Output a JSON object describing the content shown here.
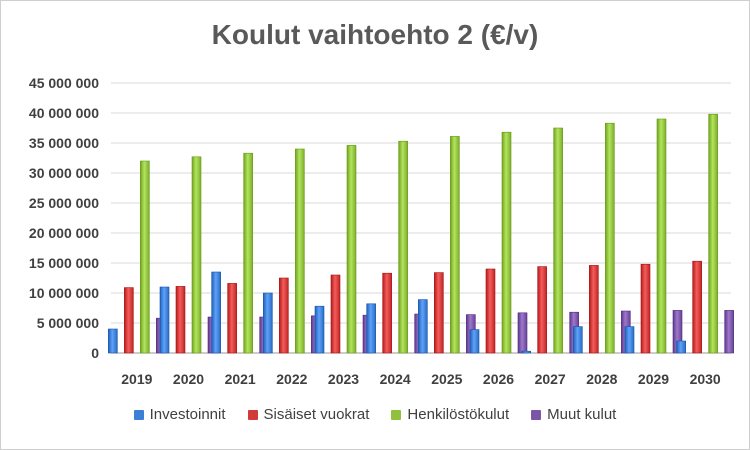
{
  "chart_data": {
    "type": "bar",
    "title": "Koulut vaihtoehto 2 (€/v)",
    "xlabel": "",
    "ylabel": "",
    "ylim": [
      0,
      45000000
    ],
    "yticks": [
      0,
      5000000,
      10000000,
      15000000,
      20000000,
      25000000,
      30000000,
      35000000,
      40000000,
      45000000
    ],
    "ytick_labels": [
      "0",
      "5 000 000",
      "10 000 000",
      "15 000 000",
      "20 000 000",
      "25 000 000",
      "30 000 000",
      "35 000 000",
      "40 000 000",
      "45 000 000"
    ],
    "grid": true,
    "legend_position": "bottom",
    "categories": [
      "2019",
      "2020",
      "2021",
      "2022",
      "2023",
      "2024",
      "2025",
      "2026",
      "2027",
      "2028",
      "2029",
      "2030"
    ],
    "series": [
      {
        "name": "Investoinnit",
        "color": "#3d7fd6",
        "values": [
          4000000,
          11000000,
          13500000,
          10000000,
          7800000,
          8200000,
          8900000,
          3900000,
          300000,
          4400000,
          4400000,
          2000000
        ]
      },
      {
        "name": "Sisäiset vuokrat",
        "color": "#d23a3a",
        "values": [
          10900000,
          11100000,
          11600000,
          12500000,
          13000000,
          13300000,
          13400000,
          14000000,
          14400000,
          14600000,
          14800000,
          15300000
        ]
      },
      {
        "name": "Henkilöstökulut",
        "color": "#8fc13d",
        "values": [
          32000000,
          32700000,
          33300000,
          34000000,
          34600000,
          35300000,
          36100000,
          36800000,
          37500000,
          38300000,
          39000000,
          39800000
        ]
      },
      {
        "name": "Muut kulut",
        "color": "#7a55a8",
        "values": [
          5800000,
          6000000,
          6000000,
          6200000,
          6300000,
          6500000,
          6400000,
          6700000,
          6800000,
          7000000,
          7100000,
          7100000
        ]
      }
    ]
  }
}
